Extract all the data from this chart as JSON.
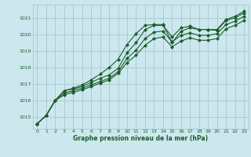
{
  "title": "Graphe pression niveau de la mer (hPa)",
  "bg_color": "#cce8ee",
  "grid_color": "#aaccd4",
  "line_color": "#1a5c2a",
  "text_color": "#1a5c2a",
  "xlim": [
    -0.5,
    23.5
  ],
  "ylim": [
    1014.3,
    1021.8
  ],
  "yticks": [
    1015,
    1016,
    1017,
    1018,
    1019,
    1020,
    1021
  ],
  "xticks": [
    0,
    1,
    2,
    3,
    4,
    5,
    6,
    7,
    8,
    9,
    10,
    11,
    12,
    13,
    14,
    15,
    16,
    17,
    18,
    19,
    20,
    21,
    22,
    23
  ],
  "series": [
    [
      1014.6,
      1015.1,
      1016.0,
      1016.6,
      1016.7,
      1016.85,
      1017.1,
      1017.35,
      1017.55,
      1017.95,
      1018.9,
      1019.5,
      1020.3,
      1020.55,
      1020.55,
      1019.85,
      1020.4,
      1020.5,
      1020.3,
      1020.3,
      1020.25,
      1020.85,
      1021.0,
      1021.3
    ],
    [
      1014.6,
      1015.1,
      1016.0,
      1016.45,
      1016.6,
      1016.75,
      1016.95,
      1017.15,
      1017.35,
      1017.75,
      1018.55,
      1019.05,
      1019.75,
      1020.15,
      1020.2,
      1019.55,
      1019.95,
      1020.1,
      1019.95,
      1019.95,
      1020.05,
      1020.6,
      1020.8,
      1021.1
    ],
    [
      1014.6,
      1015.1,
      1016.0,
      1016.35,
      1016.5,
      1016.65,
      1016.85,
      1017.05,
      1017.25,
      1017.65,
      1018.3,
      1018.75,
      1019.35,
      1019.75,
      1019.85,
      1019.25,
      1019.6,
      1019.8,
      1019.65,
      1019.65,
      1019.75,
      1020.35,
      1020.55,
      1020.85
    ],
    [
      1014.6,
      1015.1,
      1016.0,
      1016.6,
      1016.75,
      1016.95,
      1017.25,
      1017.6,
      1018.0,
      1018.5,
      1019.4,
      1020.05,
      1020.55,
      1020.6,
      1020.6,
      1019.5,
      1020.2,
      1020.4,
      1020.3,
      1020.3,
      1020.3,
      1020.9,
      1021.1,
      1021.4
    ]
  ]
}
